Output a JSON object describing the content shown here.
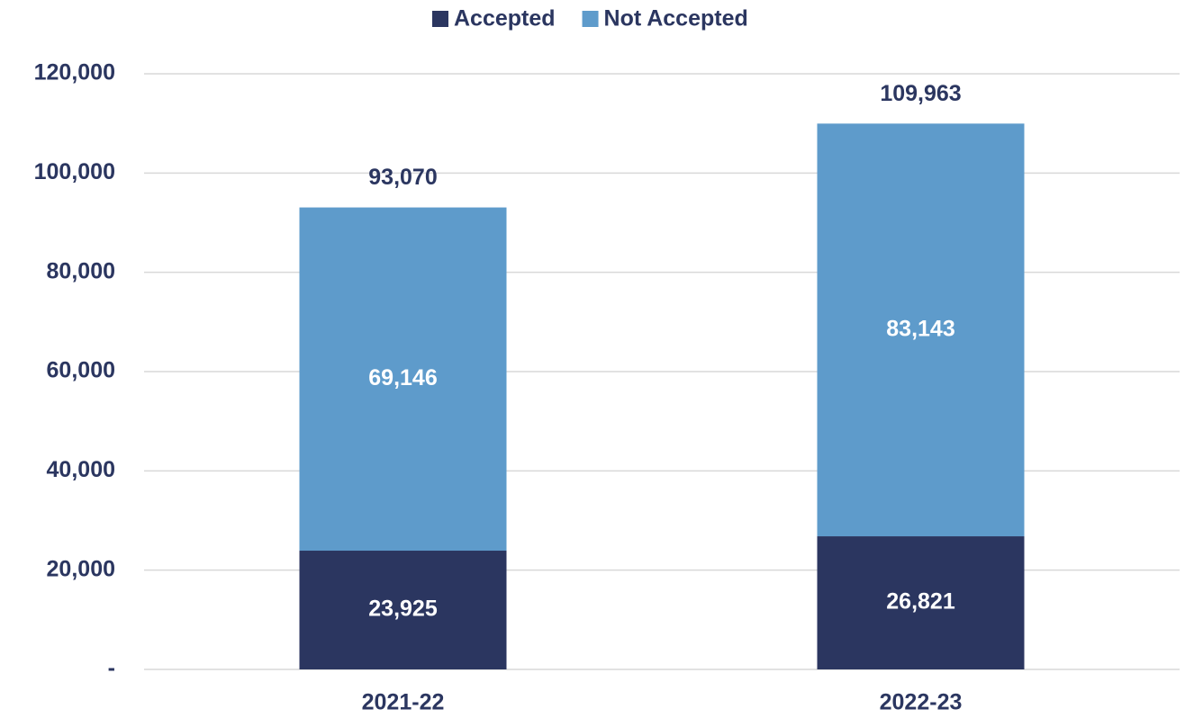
{
  "chart_data": {
    "type": "stacked_bar",
    "categories": [
      "2021-22",
      "2022-23"
    ],
    "series": [
      {
        "name": "Accepted",
        "color": "#2b3660",
        "values": [
          23925,
          26821
        ],
        "value_labels": [
          "23,925",
          "26,821"
        ]
      },
      {
        "name": "Not Accepted",
        "color": "#5e9bcb",
        "values": [
          69146,
          83143
        ],
        "value_labels": [
          "69,146",
          "83,143"
        ]
      }
    ],
    "totals": [
      93070,
      109963
    ],
    "total_labels": [
      "93,070",
      "109,963"
    ],
    "ylim": [
      0,
      120000
    ],
    "yticks": [
      {
        "value": 0,
        "label": "-"
      },
      {
        "value": 20000,
        "label": "20,000"
      },
      {
        "value": 40000,
        "label": "40,000"
      },
      {
        "value": 60000,
        "label": "60,000"
      },
      {
        "value": 80000,
        "label": "80,000"
      },
      {
        "value": 100000,
        "label": "100,000"
      },
      {
        "value": 120000,
        "label": "120,000"
      }
    ],
    "grid": true,
    "legend": "top"
  }
}
